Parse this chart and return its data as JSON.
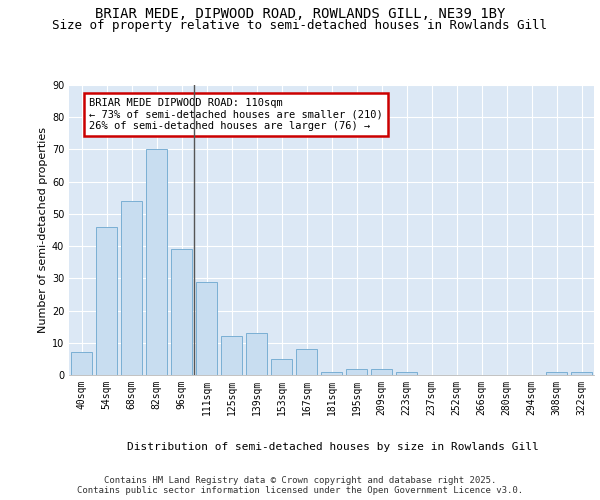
{
  "title1": "BRIAR MEDE, DIPWOOD ROAD, ROWLANDS GILL, NE39 1BY",
  "title2": "Size of property relative to semi-detached houses in Rowlands Gill",
  "xlabel": "Distribution of semi-detached houses by size in Rowlands Gill",
  "ylabel": "Number of semi-detached properties",
  "categories": [
    "40sqm",
    "54sqm",
    "68sqm",
    "82sqm",
    "96sqm",
    "111sqm",
    "125sqm",
    "139sqm",
    "153sqm",
    "167sqm",
    "181sqm",
    "195sqm",
    "209sqm",
    "223sqm",
    "237sqm",
    "252sqm",
    "266sqm",
    "280sqm",
    "294sqm",
    "308sqm",
    "322sqm"
  ],
  "values": [
    7,
    46,
    54,
    70,
    39,
    29,
    12,
    13,
    5,
    8,
    1,
    2,
    2,
    1,
    0,
    0,
    0,
    0,
    0,
    1,
    1
  ],
  "bar_color": "#c8ddf0",
  "bar_edge_color": "#7aafd4",
  "highlight_index": 5,
  "annotation_text": "BRIAR MEDE DIPWOOD ROAD: 110sqm\n← 73% of semi-detached houses are smaller (210)\n26% of semi-detached houses are larger (76) →",
  "annotation_box_color": "#ffffff",
  "annotation_box_edge_color": "#cc0000",
  "ylim": [
    0,
    90
  ],
  "yticks": [
    0,
    10,
    20,
    30,
    40,
    50,
    60,
    70,
    80,
    90
  ],
  "plot_bg_color": "#dce8f5",
  "fig_bg_color": "#ffffff",
  "grid_color": "#ffffff",
  "footer_text": "Contains HM Land Registry data © Crown copyright and database right 2025.\nContains public sector information licensed under the Open Government Licence v3.0.",
  "title_fontsize": 10,
  "subtitle_fontsize": 9,
  "axis_label_fontsize": 8,
  "tick_fontsize": 7,
  "annotation_fontsize": 7.5
}
